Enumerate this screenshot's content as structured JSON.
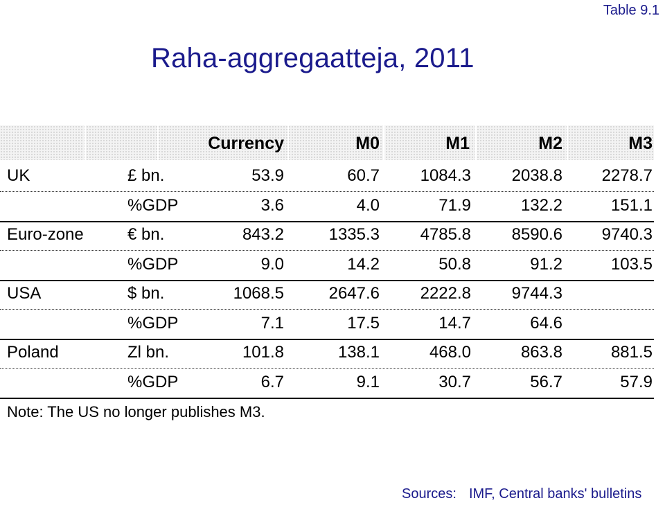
{
  "tag": "Table 9.1",
  "title": "Raha-aggregaatteja, 2011",
  "columns": [
    "Currency",
    "M0",
    "M1",
    "M2",
    "M3"
  ],
  "rows": [
    {
      "country": "UK",
      "unit": "£ bn.",
      "values": [
        "53.9",
        "60.7",
        "1084.3",
        "2038.8",
        "2278.7"
      ]
    },
    {
      "country": "",
      "unit": "%GDP",
      "values": [
        "3.6",
        "4.0",
        "71.9",
        "132.2",
        "151.1"
      ]
    },
    {
      "country": "Euro-zone",
      "unit": "€ bn.",
      "values": [
        "843.2",
        "1335.3",
        "4785.8",
        "8590.6",
        "9740.3"
      ]
    },
    {
      "country": "",
      "unit": "%GDP",
      "values": [
        "9.0",
        "14.2",
        "50.8",
        "91.2",
        "103.5"
      ]
    },
    {
      "country": "USA",
      "unit": "$ bn.",
      "values": [
        "1068.5",
        "2647.6",
        "2222.8",
        "9744.3",
        ""
      ]
    },
    {
      "country": "",
      "unit": "%GDP",
      "values": [
        "7.1",
        "17.5",
        "14.7",
        "64.6",
        ""
      ]
    },
    {
      "country": "Poland",
      "unit": "Zl bn.",
      "values": [
        "101.8",
        "138.1",
        "468.0",
        "863.8",
        "881.5"
      ]
    },
    {
      "country": "",
      "unit": "%GDP",
      "values": [
        "6.7",
        "9.1",
        "30.7",
        "56.7",
        "57.9"
      ]
    }
  ],
  "note": "Note: The US no longer publishes M3.",
  "sources_label": "Sources:",
  "sources_text": "IMF, Central banks' bulletins"
}
